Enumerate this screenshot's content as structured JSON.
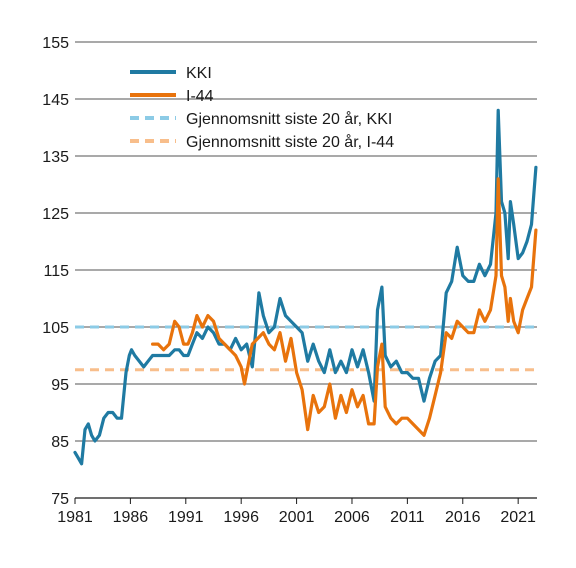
{
  "chart_data": {
    "type": "line",
    "title": "",
    "xlabel": "",
    "ylabel": "",
    "xlim": [
      1981,
      2022.7
    ],
    "ylim": [
      75,
      155
    ],
    "grid": true,
    "legend_position": "top-left",
    "x_ticks": [
      "1981",
      "1986",
      "1991",
      "1996",
      "2001",
      "2006",
      "2011",
      "2016",
      "2021"
    ],
    "y_ticks": [
      "75",
      "85",
      "95",
      "105",
      "115",
      "125",
      "135",
      "145",
      "155"
    ],
    "series": [
      {
        "name": "KKI",
        "color": "#1f7aa2",
        "style": "solid",
        "x": [
          1981.0,
          1981.3,
          1981.6,
          1981.9,
          1982.2,
          1982.5,
          1982.8,
          1983.2,
          1983.6,
          1984.0,
          1984.4,
          1984.8,
          1985.2,
          1985.6,
          1985.9,
          1986.1,
          1986.4,
          1986.8,
          1987.2,
          1987.6,
          1988.0,
          1988.5,
          1989.0,
          1989.5,
          1990.0,
          1990.4,
          1990.8,
          1991.2,
          1991.6,
          1992.0,
          1992.5,
          1993.0,
          1993.5,
          1994.0,
          1994.5,
          1995.0,
          1995.5,
          1996.0,
          1996.5,
          1997.0,
          1997.3,
          1997.6,
          1998.0,
          1998.5,
          1999.0,
          1999.5,
          2000.0,
          2000.5,
          2001.0,
          2001.5,
          2002.0,
          2002.5,
          2003.0,
          2003.5,
          2004.0,
          2004.5,
          2005.0,
          2005.5,
          2006.0,
          2006.5,
          2007.0,
          2007.5,
          2008.0,
          2008.3,
          2008.7,
          2009.0,
          2009.5,
          2010.0,
          2010.5,
          2011.0,
          2011.5,
          2012.0,
          2012.5,
          2013.0,
          2013.5,
          2014.0,
          2014.5,
          2015.0,
          2015.5,
          2016.0,
          2016.5,
          2017.0,
          2017.5,
          2018.0,
          2018.5,
          2019.0,
          2019.2,
          2019.5,
          2019.8,
          2020.1,
          2020.3,
          2020.6,
          2021.0,
          2021.4,
          2021.8,
          2022.2,
          2022.6
        ],
        "y": [
          83,
          82,
          81,
          87,
          88,
          86,
          85,
          86,
          89,
          90,
          90,
          89,
          89,
          97,
          100,
          101,
          100,
          99,
          98,
          99,
          100,
          100,
          100,
          100,
          101,
          101,
          100,
          100,
          102,
          104,
          103,
          105,
          104,
          102,
          102,
          101,
          103,
          101,
          102,
          98,
          104,
          111,
          107,
          104,
          105,
          110,
          107,
          106,
          105,
          104,
          99,
          102,
          99,
          97,
          101,
          97,
          99,
          97,
          101,
          98,
          101,
          97,
          92,
          108,
          112,
          100,
          98,
          99,
          97,
          97,
          96,
          96,
          92,
          96,
          99,
          100,
          111,
          113,
          119,
          114,
          113,
          113,
          116,
          114,
          116,
          125,
          143,
          127,
          125,
          117,
          127,
          123,
          117,
          118,
          120,
          123,
          133
        ]
      },
      {
        "name": "I-44",
        "color": "#e8730c",
        "style": "solid",
        "x": [
          1988.0,
          1988.5,
          1989.0,
          1989.5,
          1990.0,
          1990.4,
          1990.8,
          1991.2,
          1991.6,
          1992.0,
          1992.5,
          1993.0,
          1993.5,
          1994.0,
          1994.5,
          1995.0,
          1995.5,
          1996.0,
          1996.3,
          1996.7,
          1997.0,
          1997.5,
          1998.0,
          1998.5,
          1999.0,
          1999.5,
          2000.0,
          2000.5,
          2001.0,
          2001.5,
          2002.0,
          2002.5,
          2003.0,
          2003.5,
          2004.0,
          2004.5,
          2005.0,
          2005.5,
          2006.0,
          2006.5,
          2007.0,
          2007.5,
          2008.0,
          2008.3,
          2008.7,
          2009.0,
          2009.5,
          2010.0,
          2010.5,
          2011.0,
          2011.5,
          2012.0,
          2012.5,
          2013.0,
          2013.5,
          2014.0,
          2014.5,
          2015.0,
          2015.5,
          2016.0,
          2016.5,
          2017.0,
          2017.5,
          2018.0,
          2018.5,
          2019.0,
          2019.2,
          2019.5,
          2019.8,
          2020.1,
          2020.3,
          2020.6,
          2021.0,
          2021.4,
          2021.8,
          2022.2,
          2022.6
        ],
        "y": [
          102,
          102,
          101,
          102,
          106,
          105,
          102,
          102,
          104,
          107,
          105,
          107,
          106,
          103,
          102,
          101,
          100,
          98,
          95,
          99,
          102,
          103,
          104,
          102,
          101,
          104,
          99,
          103,
          97,
          94,
          87,
          93,
          90,
          91,
          95,
          89,
          93,
          90,
          94,
          91,
          93,
          88,
          88,
          98,
          102,
          91,
          89,
          88,
          89,
          89,
          88,
          87,
          86,
          89,
          93,
          97,
          104,
          103,
          106,
          105,
          104,
          104,
          108,
          106,
          108,
          114,
          131,
          114,
          112,
          106,
          110,
          106,
          104,
          108,
          110,
          112,
          122
        ]
      },
      {
        "name": "Gjennomsnitt siste 20 år, KKI",
        "color": "#8ccbe6",
        "style": "dashed",
        "x": [
          1981,
          2022.7
        ],
        "y": [
          105,
          105
        ]
      },
      {
        "name": "Gjennomsnitt siste 20 år, I-44",
        "color": "#f8be8b",
        "style": "dashed",
        "x": [
          1981,
          2022.7
        ],
        "y": [
          97.5,
          97.5
        ]
      }
    ]
  }
}
